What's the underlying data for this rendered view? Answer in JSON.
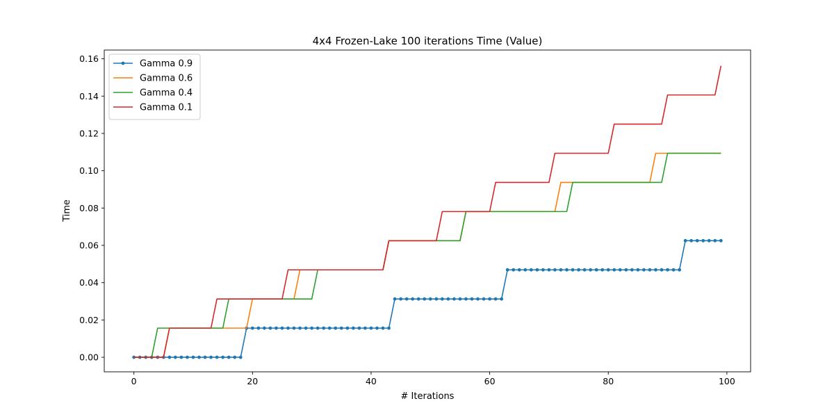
{
  "chart_data": {
    "type": "line",
    "title": "4x4 Frozen-Lake 100 iterations  Time (Value)",
    "xlabel": "# Iterations",
    "ylabel": "Time",
    "xlim": [
      -5,
      104
    ],
    "ylim": [
      -0.0078,
      0.1647
    ],
    "xticks": [
      0,
      20,
      40,
      60,
      80,
      100
    ],
    "xtick_labels": [
      "0",
      "20",
      "40",
      "60",
      "80",
      "100"
    ],
    "yticks": [
      0.0,
      0.02,
      0.04,
      0.06,
      0.08,
      0.1,
      0.12,
      0.14,
      0.16
    ],
    "ytick_labels": [
      "0.00",
      "0.02",
      "0.04",
      "0.06",
      "0.08",
      "0.10",
      "0.12",
      "0.14",
      "0.16"
    ],
    "grid": false,
    "legend_position": "top-left",
    "series": [
      {
        "name": "Gamma 0.9",
        "color": "#1f77b4",
        "markers": true,
        "x": [
          0,
          18,
          19,
          43,
          44,
          62,
          63,
          92,
          93,
          99
        ],
        "y": [
          0.0,
          0.0,
          0.015625,
          0.015625,
          0.03125,
          0.03125,
          0.046875,
          0.046875,
          0.0625,
          0.0625
        ]
      },
      {
        "name": "Gamma 0.6",
        "color": "#ff7f0e",
        "markers": false,
        "x": [
          0,
          5,
          6,
          19,
          20,
          27,
          28,
          42,
          43,
          55,
          56,
          71,
          72,
          87,
          88,
          99
        ],
        "y": [
          0.0,
          0.0,
          0.015625,
          0.015625,
          0.03125,
          0.03125,
          0.046875,
          0.046875,
          0.0625,
          0.0625,
          0.078125,
          0.078125,
          0.09375,
          0.09375,
          0.109375,
          0.109375
        ]
      },
      {
        "name": "Gamma 0.4",
        "color": "#2ca02c",
        "markers": false,
        "x": [
          0,
          3,
          4,
          15,
          16,
          30,
          31,
          42,
          43,
          55,
          56,
          73,
          74,
          89,
          90,
          99
        ],
        "y": [
          0.0,
          0.0,
          0.015625,
          0.015625,
          0.03125,
          0.03125,
          0.046875,
          0.046875,
          0.0625,
          0.0625,
          0.078125,
          0.078125,
          0.09375,
          0.09375,
          0.109375,
          0.109375
        ]
      },
      {
        "name": "Gamma 0.1",
        "color": "#d62728",
        "markers": false,
        "x": [
          0,
          5,
          6,
          13,
          14,
          25,
          26,
          42,
          43,
          51,
          52,
          60,
          61,
          70,
          71,
          80,
          81,
          89,
          90,
          98,
          99
        ],
        "y": [
          0.0,
          0.0,
          0.015625,
          0.015625,
          0.03125,
          0.03125,
          0.046875,
          0.046875,
          0.0625,
          0.0625,
          0.078125,
          0.078125,
          0.09375,
          0.09375,
          0.109375,
          0.109375,
          0.125,
          0.125,
          0.140625,
          0.140625,
          0.15625
        ]
      }
    ]
  }
}
